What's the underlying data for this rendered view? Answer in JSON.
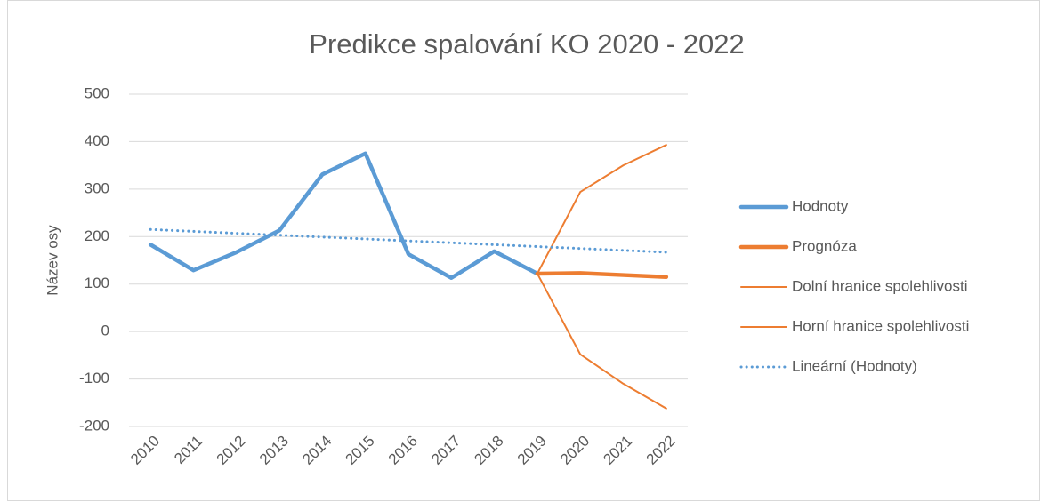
{
  "chart_data": {
    "type": "line",
    "title": "Predikce spalování KO 2020 - 2022",
    "y_label": "Název osy",
    "categories": [
      "2010",
      "2011",
      "2012",
      "2013",
      "2014",
      "2015",
      "2016",
      "2017",
      "2018",
      "2019",
      "2020",
      "2021",
      "2022"
    ],
    "series": [
      {
        "name": "Hodnoty",
        "color": "#5b9bd5",
        "values": [
          183,
          129,
          167,
          213,
          331,
          375,
          163,
          113,
          169,
          122,
          null,
          null,
          null
        ]
      },
      {
        "name": "Prognóza",
        "color": "#ed7d31",
        "values": [
          null,
          null,
          null,
          null,
          null,
          null,
          null,
          null,
          null,
          122,
          123,
          119,
          115
        ]
      },
      {
        "name": "Dolní hranice spolehlivosti",
        "color": "#ed7d31",
        "values": [
          null,
          null,
          null,
          null,
          null,
          null,
          null,
          null,
          null,
          122,
          -48,
          -110,
          -162
        ]
      },
      {
        "name": "Horní hranice spolehlivosti",
        "color": "#ed7d31",
        "values": [
          null,
          null,
          null,
          null,
          null,
          null,
          null,
          null,
          null,
          122,
          294,
          350,
          393
        ]
      },
      {
        "name": "Lineární (Hodnoty)",
        "color": "#5b9bd5",
        "dotted": true,
        "values": [
          215,
          211,
          207,
          203,
          199,
          195,
          191,
          187,
          183,
          179,
          175,
          171,
          167
        ]
      }
    ],
    "ylim": [
      -200,
      500
    ],
    "yticks": [
      -200,
      -100,
      0,
      100,
      200,
      300,
      400,
      500
    ],
    "grid": true,
    "legend": "right"
  }
}
